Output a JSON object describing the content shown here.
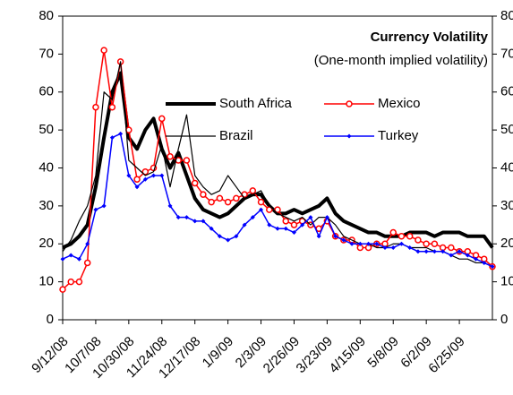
{
  "chart_data": {
    "type": "line",
    "title": "Currency Volatility",
    "subtitle": "(One-month implied volatility)",
    "categories": [
      "9/12/08",
      null,
      null,
      null,
      "10/7/08",
      null,
      null,
      null,
      "10/30/08",
      null,
      null,
      null,
      "11/24/08",
      null,
      null,
      null,
      "12/17/08",
      null,
      null,
      null,
      "1/9/09",
      null,
      null,
      null,
      "2/3/09",
      null,
      null,
      null,
      "2/26/09",
      null,
      null,
      null,
      "3/23/09",
      null,
      null,
      null,
      "4/15/09",
      null,
      null,
      null,
      "5/8/09",
      null,
      null,
      null,
      "6/2/09",
      null,
      null,
      null,
      "6/25/09",
      null,
      null,
      null,
      null
    ],
    "series": [
      {
        "name": "South Africa",
        "color": "#000000",
        "width": 4,
        "marker": "none",
        "values": [
          19,
          20,
          22,
          25,
          35,
          48,
          60,
          65,
          48,
          45,
          50,
          53,
          45,
          40,
          44,
          38,
          32,
          29,
          28,
          27,
          28,
          30,
          32,
          33,
          33,
          30,
          28,
          28,
          29,
          28,
          29,
          30,
          32,
          28,
          26,
          25,
          24,
          23,
          23,
          22,
          22,
          22,
          23,
          23,
          23,
          22,
          23,
          23,
          23,
          22,
          22,
          22,
          19
        ]
      },
      {
        "name": "Mexico",
        "color": "#ff0000",
        "width": 1.5,
        "marker": "circle",
        "values": [
          8,
          10,
          10,
          15,
          56,
          71,
          56,
          68,
          50,
          37,
          39,
          40,
          53,
          43,
          42,
          42,
          36,
          33,
          31,
          32,
          31,
          32,
          33,
          34,
          31,
          29,
          29,
          26,
          25,
          26,
          25,
          24,
          26,
          22,
          21,
          21,
          19,
          19,
          20,
          20,
          23,
          22,
          22,
          21,
          20,
          20,
          19,
          19,
          18,
          18,
          17,
          16,
          14
        ]
      },
      {
        "name": "Brazil",
        "color": "#000000",
        "width": 1.2,
        "marker": "none",
        "values": [
          18,
          21,
          26,
          30,
          38,
          60,
          58,
          68,
          42,
          40,
          38,
          39,
          46,
          35,
          45,
          54,
          38,
          35,
          33,
          34,
          38,
          35,
          32,
          33,
          34,
          30,
          28,
          27,
          26,
          27,
          25,
          27,
          27,
          25,
          22,
          21,
          20,
          20,
          19,
          19,
          20,
          20,
          19,
          19,
          19,
          18,
          18,
          17,
          16,
          16,
          15,
          15,
          14
        ]
      },
      {
        "name": "Turkey",
        "color": "#0000ff",
        "width": 1.5,
        "marker": "diamond",
        "values": [
          16,
          17,
          16,
          20,
          29,
          30,
          48,
          49,
          38,
          35,
          37,
          38,
          38,
          30,
          27,
          27,
          26,
          26,
          24,
          22,
          21,
          22,
          25,
          27,
          29,
          25,
          24,
          24,
          23,
          25,
          27,
          22,
          27,
          22,
          21,
          20,
          20,
          20,
          20,
          19,
          19,
          20,
          19,
          18,
          18,
          18,
          18,
          17,
          18,
          17,
          16,
          15,
          14
        ]
      }
    ],
    "ylim": [
      0,
      80
    ],
    "yticks": [
      0,
      10,
      20,
      30,
      40,
      50,
      60,
      70,
      80
    ],
    "y2lim": [
      0,
      80
    ],
    "y2ticks": [
      0,
      10,
      20,
      30,
      40,
      50,
      60,
      70,
      80
    ],
    "grid": false
  }
}
